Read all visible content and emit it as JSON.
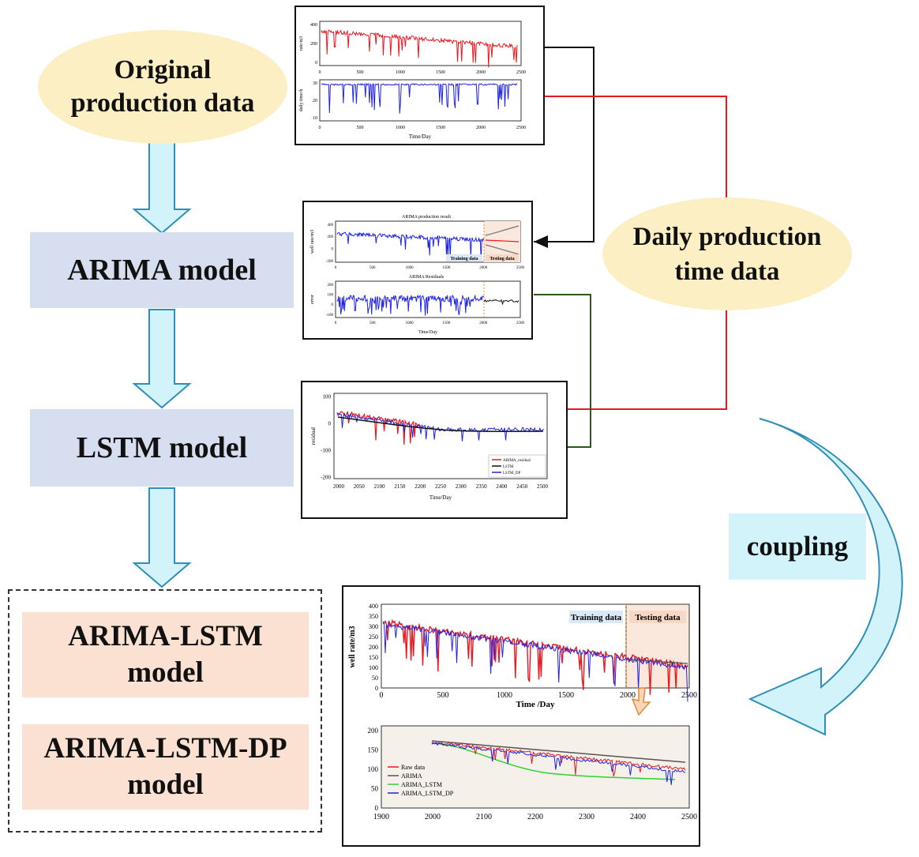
{
  "nodes": {
    "original": "Original\nproduction data",
    "daily": "Daily production\ntime data",
    "arima": "ARIMA model",
    "lstm": "LSTM model",
    "arima_lstm": "ARIMA-LSTM\nmodel",
    "arima_lstm_dp": "ARIMA-LSTM-DP\nmodel",
    "coupling": "coupling"
  },
  "panel_top": {
    "upper": {
      "xticks": [
        "0",
        "500",
        "1000",
        "1500",
        "2000",
        "2500"
      ],
      "yticks": [
        "400",
        "200",
        "0"
      ],
      "ylabel": "rate/m3"
    },
    "lower": {
      "xticks": [
        "0",
        "500",
        "1000",
        "1500",
        "2000",
        "2500"
      ],
      "yticks": [
        "30",
        "20",
        "10"
      ],
      "ylabel": "daily time/h",
      "xlabel": "Time/Day"
    }
  },
  "panel_arima": {
    "upper": {
      "title": "ARIMA production result",
      "xticks": [
        "0",
        "500",
        "1000",
        "1500",
        "2000",
        "2500"
      ],
      "yticks": [
        "400",
        "200",
        "0",
        "-200"
      ],
      "ylabel": "well rate/m3",
      "train": "Training data",
      "test": "Testing data"
    },
    "lower": {
      "title": "ARIMA Residuals",
      "xticks": [
        "0",
        "500",
        "1000",
        "1500",
        "2000",
        "2500"
      ],
      "yticks": [
        "200",
        "100",
        "0",
        "-100"
      ],
      "ylabel": "error",
      "xlabel": "Time/Day"
    }
  },
  "panel_lstm": {
    "xticks": [
      "2000",
      "2050",
      "2100",
      "2150",
      "2200",
      "2250",
      "2300",
      "2350",
      "2400",
      "2450",
      "2500"
    ],
    "yticks": [
      "100",
      "0",
      "-100",
      "-200"
    ],
    "ylabel": "residual",
    "xlabel": "Time/Day",
    "legend": [
      "ARIMA_residual",
      "LSTM",
      "LSTM_DP"
    ]
  },
  "panel_result": {
    "upper": {
      "xticks": [
        "0",
        "500",
        "1000",
        "1500",
        "2000",
        "2500"
      ],
      "yticks": [
        "400",
        "350",
        "300",
        "250",
        "200",
        "150",
        "100",
        "50",
        "0"
      ],
      "ylabel": "well rate/m3",
      "xlabel": "Time /Day",
      "train": "Training data",
      "test": "Testing data"
    },
    "lower": {
      "xticks": [
        "1900",
        "2000",
        "2100",
        "2200",
        "2300",
        "2400",
        "2500"
      ],
      "yticks": [
        "200",
        "150",
        "100",
        "50",
        "0"
      ],
      "legend": [
        "Raw data",
        "ARIMA",
        "ARIMA_LSTM",
        "ARIMA_LSTM_DP"
      ]
    }
  },
  "colors": {
    "ellipse": "#fcefc4",
    "box_blue": "#d6deef",
    "box_peach": "#fbe1d2",
    "arrow_fill": "#d3f3fb",
    "arrow_stroke": "#2f8fb8",
    "red": "#e8191f",
    "green": "#2d5a1c",
    "black": "#111111",
    "blue": "#1f23e6",
    "gray": "#555555",
    "lime": "#2fd12f",
    "orange": "#e08a3a"
  }
}
